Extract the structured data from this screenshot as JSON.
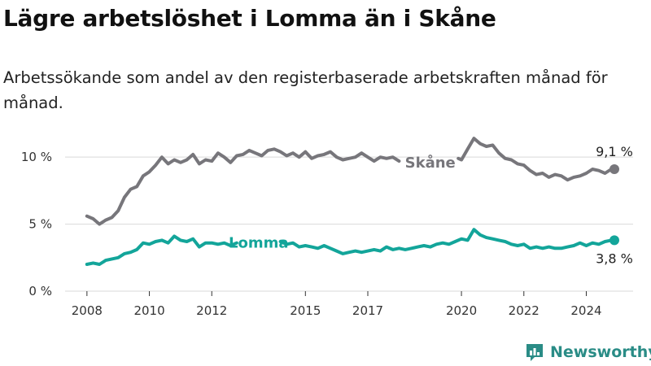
{
  "header": {
    "title": "Lägre arbetslöshet i Lomma än i Skåne",
    "subtitle": "Arbetssökande som andel av den registerbaserade arbetskraften månad för månad."
  },
  "brand": {
    "name": "Newsworthy"
  },
  "colors": {
    "skane": "#77767b",
    "lomma": "#13a59a",
    "brand": "#2a8c86",
    "grid": "#d9d9d9"
  },
  "chart_data": {
    "type": "line",
    "title": "Lägre arbetslöshet i Lomma än i Skåne",
    "xlabel": "",
    "ylabel": "",
    "xlim": [
      2007.3,
      2025.5
    ],
    "ylim": [
      0,
      10.8
    ],
    "x_ticks": [
      2008,
      2010,
      2012,
      2015,
      2017,
      2020,
      2022,
      2024
    ],
    "y_ticks": [
      0,
      5,
      10
    ],
    "y_tick_labels": [
      "0 %",
      "5 %",
      "10 %"
    ],
    "series": [
      {
        "name": "Skåne",
        "color": "#77767b",
        "end_label": "9,1 %",
        "points": [
          [
            2008.0,
            5.6
          ],
          [
            2008.2,
            5.4
          ],
          [
            2008.4,
            5.0
          ],
          [
            2008.6,
            5.3
          ],
          [
            2008.8,
            5.5
          ],
          [
            2009.0,
            6.0
          ],
          [
            2009.2,
            7.0
          ],
          [
            2009.4,
            7.6
          ],
          [
            2009.6,
            7.8
          ],
          [
            2009.8,
            8.6
          ],
          [
            2010.0,
            8.9
          ],
          [
            2010.2,
            9.4
          ],
          [
            2010.4,
            10.0
          ],
          [
            2010.6,
            9.5
          ],
          [
            2010.8,
            9.8
          ],
          [
            2011.0,
            9.6
          ],
          [
            2011.2,
            9.8
          ],
          [
            2011.4,
            10.2
          ],
          [
            2011.6,
            9.5
          ],
          [
            2011.8,
            9.8
          ],
          [
            2012.0,
            9.7
          ],
          [
            2012.2,
            10.3
          ],
          [
            2012.4,
            10.0
          ],
          [
            2012.6,
            9.6
          ],
          [
            2012.8,
            10.1
          ],
          [
            2013.0,
            10.2
          ],
          [
            2013.2,
            10.5
          ],
          [
            2013.4,
            10.3
          ],
          [
            2013.6,
            10.1
          ],
          [
            2013.8,
            10.5
          ],
          [
            2014.0,
            10.6
          ],
          [
            2014.2,
            10.4
          ],
          [
            2014.4,
            10.1
          ],
          [
            2014.6,
            10.3
          ],
          [
            2014.8,
            10.0
          ],
          [
            2015.0,
            10.4
          ],
          [
            2015.2,
            9.9
          ],
          [
            2015.4,
            10.1
          ],
          [
            2015.6,
            10.2
          ],
          [
            2015.8,
            10.4
          ],
          [
            2016.0,
            10.0
          ],
          [
            2016.2,
            9.8
          ],
          [
            2016.4,
            9.9
          ],
          [
            2016.6,
            10.0
          ],
          [
            2016.8,
            10.3
          ],
          [
            2017.0,
            10.0
          ],
          [
            2017.2,
            9.7
          ],
          [
            2017.4,
            10.0
          ],
          [
            2017.6,
            9.9
          ],
          [
            2017.8,
            10.0
          ],
          [
            2018.0,
            9.7
          ],
          null,
          [
            2019.9,
            9.9
          ],
          [
            2020.0,
            9.8
          ],
          [
            2020.2,
            10.6
          ],
          [
            2020.4,
            11.4
          ],
          [
            2020.6,
            11.0
          ],
          [
            2020.8,
            10.8
          ],
          [
            2021.0,
            10.9
          ],
          [
            2021.2,
            10.3
          ],
          [
            2021.4,
            9.9
          ],
          [
            2021.6,
            9.8
          ],
          [
            2021.8,
            9.5
          ],
          [
            2022.0,
            9.4
          ],
          [
            2022.2,
            9.0
          ],
          [
            2022.4,
            8.7
          ],
          [
            2022.6,
            8.8
          ],
          [
            2022.8,
            8.5
          ],
          [
            2023.0,
            8.7
          ],
          [
            2023.2,
            8.6
          ],
          [
            2023.4,
            8.3
          ],
          [
            2023.6,
            8.5
          ],
          [
            2023.8,
            8.6
          ],
          [
            2024.0,
            8.8
          ],
          [
            2024.2,
            9.1
          ],
          [
            2024.4,
            9.0
          ],
          [
            2024.6,
            8.8
          ],
          [
            2024.8,
            9.1
          ],
          [
            2024.9,
            9.1
          ]
        ]
      },
      {
        "name": "Lomma",
        "color": "#13a59a",
        "end_label": "3,8 %",
        "points": [
          [
            2008.0,
            2.0
          ],
          [
            2008.2,
            2.1
          ],
          [
            2008.4,
            2.0
          ],
          [
            2008.6,
            2.3
          ],
          [
            2008.8,
            2.4
          ],
          [
            2009.0,
            2.5
          ],
          [
            2009.2,
            2.8
          ],
          [
            2009.4,
            2.9
          ],
          [
            2009.6,
            3.1
          ],
          [
            2009.8,
            3.6
          ],
          [
            2010.0,
            3.5
          ],
          [
            2010.2,
            3.7
          ],
          [
            2010.4,
            3.8
          ],
          [
            2010.6,
            3.6
          ],
          [
            2010.8,
            4.1
          ],
          [
            2011.0,
            3.8
          ],
          [
            2011.2,
            3.7
          ],
          [
            2011.4,
            3.9
          ],
          [
            2011.6,
            3.3
          ],
          [
            2011.8,
            3.6
          ],
          [
            2012.0,
            3.6
          ],
          [
            2012.2,
            3.5
          ],
          [
            2012.4,
            3.6
          ],
          [
            2012.6,
            3.4
          ],
          [
            2012.8,
            3.6
          ],
          null,
          [
            2014.2,
            3.7
          ],
          [
            2014.4,
            3.5
          ],
          [
            2014.6,
            3.6
          ],
          [
            2014.8,
            3.3
          ],
          [
            2015.0,
            3.4
          ],
          [
            2015.2,
            3.3
          ],
          [
            2015.4,
            3.2
          ],
          [
            2015.6,
            3.4
          ],
          [
            2015.8,
            3.2
          ],
          [
            2016.0,
            3.0
          ],
          [
            2016.2,
            2.8
          ],
          [
            2016.4,
            2.9
          ],
          [
            2016.6,
            3.0
          ],
          [
            2016.8,
            2.9
          ],
          [
            2017.0,
            3.0
          ],
          [
            2017.2,
            3.1
          ],
          [
            2017.4,
            3.0
          ],
          [
            2017.6,
            3.3
          ],
          [
            2017.8,
            3.1
          ],
          [
            2018.0,
            3.2
          ],
          [
            2018.2,
            3.1
          ],
          [
            2018.4,
            3.2
          ],
          [
            2018.6,
            3.3
          ],
          [
            2018.8,
            3.4
          ],
          [
            2019.0,
            3.3
          ],
          [
            2019.2,
            3.5
          ],
          [
            2019.4,
            3.6
          ],
          [
            2019.6,
            3.5
          ],
          [
            2019.8,
            3.7
          ],
          [
            2020.0,
            3.9
          ],
          [
            2020.2,
            3.8
          ],
          [
            2020.4,
            4.6
          ],
          [
            2020.6,
            4.2
          ],
          [
            2020.8,
            4.0
          ],
          [
            2021.0,
            3.9
          ],
          [
            2021.2,
            3.8
          ],
          [
            2021.4,
            3.7
          ],
          [
            2021.6,
            3.5
          ],
          [
            2021.8,
            3.4
          ],
          [
            2022.0,
            3.5
          ],
          [
            2022.2,
            3.2
          ],
          [
            2022.4,
            3.3
          ],
          [
            2022.6,
            3.2
          ],
          [
            2022.8,
            3.3
          ],
          [
            2023.0,
            3.2
          ],
          [
            2023.2,
            3.2
          ],
          [
            2023.4,
            3.3
          ],
          [
            2023.6,
            3.4
          ],
          [
            2023.8,
            3.6
          ],
          [
            2024.0,
            3.4
          ],
          [
            2024.2,
            3.6
          ],
          [
            2024.4,
            3.5
          ],
          [
            2024.6,
            3.7
          ],
          [
            2024.8,
            3.8
          ],
          [
            2024.9,
            3.8
          ]
        ]
      }
    ],
    "annotations": [
      {
        "series": "Skåne",
        "text": "Skåne",
        "x": 2019.0,
        "y": 9.6
      },
      {
        "series": "Lomma",
        "text": "Lomma",
        "x": 2013.5,
        "y": 3.6
      }
    ]
  }
}
